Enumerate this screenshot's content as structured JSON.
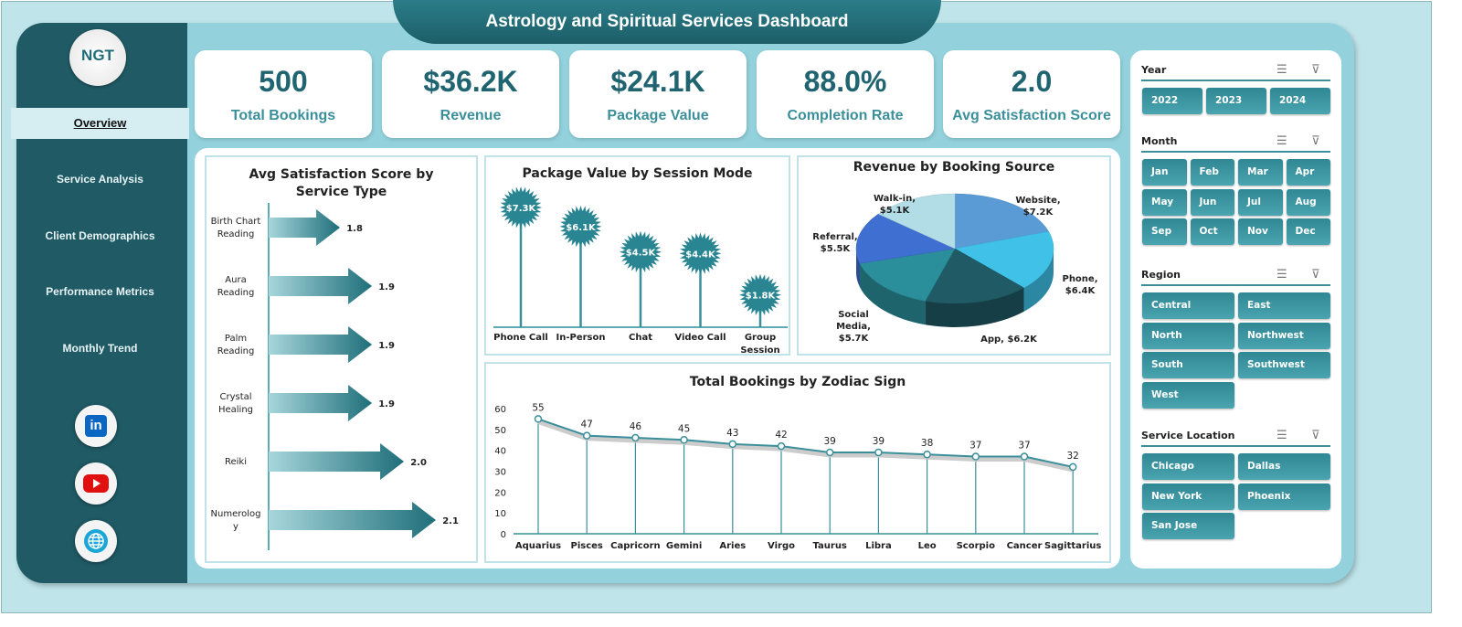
{
  "title": "Astrology and Spiritual Services Dashboard",
  "logo": "NGT",
  "nav": [
    {
      "label": "Overview",
      "active": true
    },
    {
      "label": "Service Analysis"
    },
    {
      "label": "Client Demographics"
    },
    {
      "label": "Performance Metrics"
    },
    {
      "label": "Monthly Trend"
    }
  ],
  "social": [
    "linkedin-icon",
    "youtube-icon",
    "globe-icon"
  ],
  "kpis": [
    {
      "value": "500",
      "label": "Total Bookings"
    },
    {
      "value": "$36.2K",
      "label": "Revenue"
    },
    {
      "value": "$24.1K",
      "label": "Package Value"
    },
    {
      "value": "88.0%",
      "label": "Completion Rate"
    },
    {
      "value": "2.0",
      "label": "Avg Satisfaction Score"
    }
  ],
  "colors": {
    "dark_teal": "#1f5a65",
    "accent": "#2f8793",
    "kpi_value": "#1f6470",
    "kpi_label": "#3a8f9b"
  },
  "chart_data": [
    {
      "type": "bar",
      "orientation": "horizontal",
      "title": "Avg Satisfaction Score by Service Type",
      "categories": [
        "Birth Chart Reading",
        "Aura Reading",
        "Palm Reading",
        "Crystal Healing",
        "Reiki",
        "Numerology"
      ],
      "values": [
        1.8,
        1.9,
        1.9,
        1.9,
        2.0,
        2.1
      ],
      "labels": [
        "1.8",
        "1.9",
        "1.9",
        "1.9",
        "2.0",
        "2.1"
      ],
      "marker": "arrow"
    },
    {
      "type": "lollipop",
      "title": "Package Value by Session Mode",
      "categories": [
        "Phone Call",
        "In-Person",
        "Chat",
        "Video Call",
        "Group Session"
      ],
      "values": [
        7.3,
        6.1,
        4.5,
        4.4,
        1.8
      ],
      "labels": [
        "$7.3K",
        "$6.1K",
        "$4.5K",
        "$4.4K",
        "$1.8K"
      ],
      "unit": "$K"
    },
    {
      "type": "pie",
      "title": "Revenue by Booking Source",
      "categories": [
        "Website",
        "Phone",
        "App",
        "Social Media",
        "Referral",
        "Walk-in"
      ],
      "values": [
        7.2,
        6.4,
        6.2,
        5.7,
        5.5,
        5.1
      ],
      "labels": [
        "Website, $7.2K",
        "Phone, $6.4K",
        "App, $6.2K",
        "Social Media, $5.7K",
        "Referral, $5.5K",
        "Walk-in, $5.1K"
      ],
      "colors": [
        "#5b9bd5",
        "#3fc1e8",
        "#1f5a65",
        "#2a8f9b",
        "#3f6fd0",
        "#b2dde6"
      ]
    },
    {
      "type": "line",
      "title": "Total Bookings by Zodiac Sign",
      "categories": [
        "Aquarius",
        "Pisces",
        "Capricorn",
        "Gemini",
        "Aries",
        "Virgo",
        "Taurus",
        "Libra",
        "Leo",
        "Scorpio",
        "Cancer",
        "Sagittarius"
      ],
      "values": [
        55,
        47,
        46,
        45,
        43,
        42,
        39,
        39,
        38,
        37,
        37,
        32
      ],
      "ylim": [
        0,
        60
      ],
      "yticks": [
        0,
        10,
        20,
        30,
        40,
        50,
        60
      ],
      "grid": false,
      "drop_lines": true
    }
  ],
  "slicers": [
    {
      "title": "Year",
      "cols": 3,
      "items": [
        "2022",
        "2023",
        "2024"
      ]
    },
    {
      "title": "Month",
      "cols": 4,
      "items": [
        "Jan",
        "Feb",
        "Mar",
        "Apr",
        "May",
        "Jun",
        "Jul",
        "Aug",
        "Sep",
        "Oct",
        "Nov",
        "Dec"
      ]
    },
    {
      "title": "Region",
      "cols": 2,
      "items": [
        "Central",
        "East",
        "North",
        "Northwest",
        "South",
        "Southwest",
        "West"
      ]
    },
    {
      "title": "Service Location",
      "cols": 2,
      "items": [
        "Chicago",
        "Dallas",
        "New York",
        "Phoenix",
        "San Jose"
      ]
    }
  ]
}
